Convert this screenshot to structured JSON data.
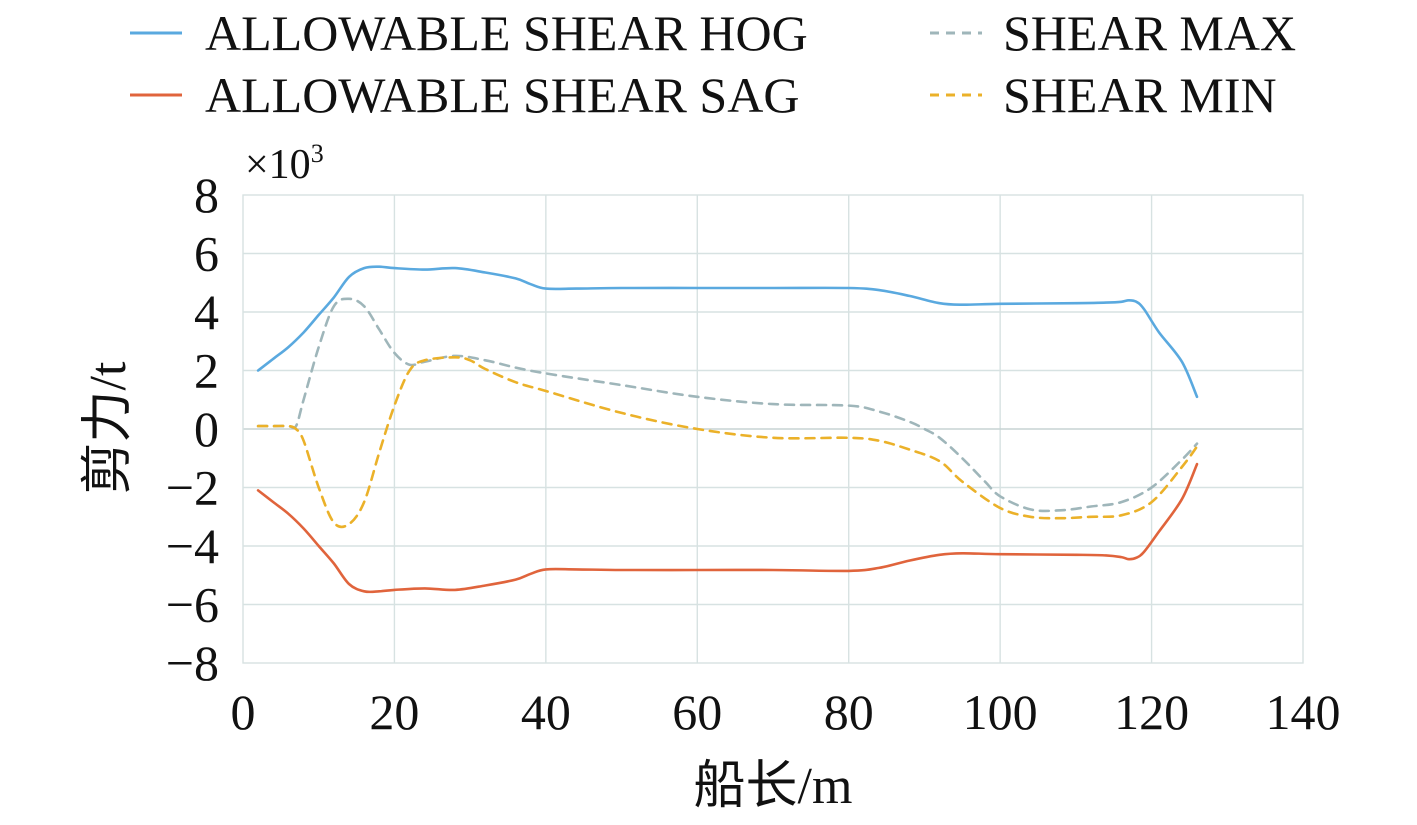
{
  "chart_data": {
    "type": "line",
    "scale_label": "×10",
    "scale_exponent": "3",
    "xlabel": "船长/m",
    "ylabel": "剪力/t",
    "xlim": [
      0,
      140
    ],
    "ylim": [
      -8,
      8
    ],
    "x_ticks": [
      "0",
      "20",
      "40",
      "60",
      "80",
      "100",
      "120",
      "140"
    ],
    "y_ticks": [
      "8",
      "6",
      "4",
      "2",
      "0",
      "−2",
      "−4",
      "−6",
      "−8"
    ],
    "grid": true,
    "legend_position": "top",
    "series": [
      {
        "name": "ALLOWABLE SHEAR HOG",
        "color": "#5aa9df",
        "dash": "solid",
        "x": [
          2,
          4,
          6,
          8,
          10,
          12,
          14,
          16,
          18,
          20,
          24,
          28,
          32,
          36,
          38,
          40,
          44,
          50,
          60,
          70,
          80,
          84,
          88,
          92,
          95,
          100,
          110,
          114,
          116,
          117,
          118,
          119,
          121,
          124,
          126
        ],
        "y": [
          2.0,
          2.4,
          2.8,
          3.3,
          3.9,
          4.5,
          5.2,
          5.5,
          5.55,
          5.5,
          5.45,
          5.5,
          5.35,
          5.15,
          4.95,
          4.8,
          4.8,
          4.82,
          4.82,
          4.82,
          4.82,
          4.75,
          4.55,
          4.3,
          4.25,
          4.28,
          4.3,
          4.32,
          4.35,
          4.4,
          4.35,
          4.1,
          3.3,
          2.3,
          1.1
        ]
      },
      {
        "name": "ALLOWABLE SHEAR SAG",
        "color": "#e0643c",
        "dash": "solid",
        "x": [
          2,
          4,
          6,
          8,
          10,
          12,
          14,
          16,
          18,
          20,
          24,
          28,
          32,
          36,
          38,
          40,
          44,
          50,
          60,
          70,
          80,
          84,
          88,
          92,
          95,
          100,
          110,
          114,
          116,
          117,
          118,
          119,
          121,
          124,
          126
        ],
        "y": [
          -2.1,
          -2.5,
          -2.9,
          -3.4,
          -4.0,
          -4.6,
          -5.3,
          -5.55,
          -5.55,
          -5.5,
          -5.45,
          -5.5,
          -5.35,
          -5.15,
          -4.95,
          -4.8,
          -4.8,
          -4.82,
          -4.82,
          -4.82,
          -4.85,
          -4.75,
          -4.5,
          -4.3,
          -4.25,
          -4.28,
          -4.3,
          -4.32,
          -4.38,
          -4.45,
          -4.4,
          -4.2,
          -3.5,
          -2.4,
          -1.2
        ]
      },
      {
        "name": "SHEAR MAX",
        "color": "#9fb6ba",
        "dash": "dashed",
        "x": [
          2,
          4,
          6,
          7,
          8,
          10,
          12,
          14,
          16,
          18,
          20,
          22,
          24,
          28,
          32,
          36,
          40,
          50,
          60,
          70,
          80,
          84,
          88,
          90,
          92,
          95,
          98,
          100,
          104,
          108,
          112,
          116,
          120,
          124,
          126
        ],
        "y": [
          0.1,
          0.1,
          0.1,
          0.1,
          1.0,
          2.8,
          4.2,
          4.45,
          4.2,
          3.4,
          2.6,
          2.2,
          2.3,
          2.5,
          2.35,
          2.1,
          1.9,
          1.5,
          1.1,
          0.85,
          0.8,
          0.6,
          0.25,
          0.0,
          -0.3,
          -1.0,
          -1.8,
          -2.3,
          -2.75,
          -2.78,
          -2.65,
          -2.5,
          -2.0,
          -1.05,
          -0.5
        ]
      },
      {
        "name": "SHEAR MIN",
        "color": "#ebb129",
        "dash": "dashed",
        "x": [
          2,
          4,
          6,
          7,
          8,
          10,
          12,
          14,
          16,
          18,
          20,
          22,
          24,
          28,
          30,
          32,
          36,
          40,
          50,
          60,
          70,
          80,
          84,
          88,
          92,
          95,
          100,
          104,
          108,
          112,
          116,
          120,
          124,
          126
        ],
        "y": [
          0.1,
          0.1,
          0.1,
          0.0,
          -0.4,
          -2.0,
          -3.2,
          -3.25,
          -2.5,
          -0.8,
          0.8,
          2.0,
          2.35,
          2.45,
          2.35,
          2.05,
          1.6,
          1.3,
          0.55,
          0.0,
          -0.3,
          -0.3,
          -0.4,
          -0.7,
          -1.1,
          -1.8,
          -2.7,
          -3.0,
          -3.05,
          -3.0,
          -2.95,
          -2.5,
          -1.3,
          -0.6
        ]
      }
    ]
  }
}
